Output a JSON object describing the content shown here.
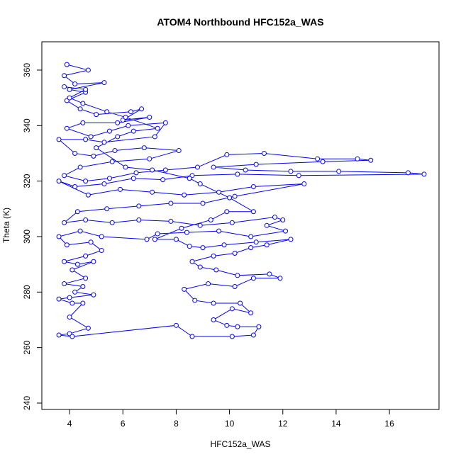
{
  "chart_data": {
    "type": "line",
    "markers": true,
    "title": "ATOM4 Northbound HFC152a_WAS",
    "x_label": "HFC152a_WAS",
    "y_label": "Theta (K)",
    "color": "#0000ff",
    "xlim": [
      2.96,
      17.86
    ],
    "ylim": [
      237.7,
      370.2
    ],
    "xticks": [
      4,
      6,
      8,
      10,
      12,
      14,
      16
    ],
    "yticks": [
      240,
      260,
      280,
      300,
      320,
      340,
      360
    ],
    "x": [
      3.9,
      4.7,
      3.8,
      4.2,
      5.3,
      4.0,
      4.6,
      3.9,
      4.4,
      5.0,
      6.3,
      6.7,
      6.0,
      7.0,
      5.8,
      4.5,
      3.9,
      4.8,
      5.5,
      6.2,
      7.6,
      7.2,
      5.3,
      4.6,
      3.6,
      4.2,
      4.9,
      5.7,
      6.8,
      8.1,
      7.0,
      5.6,
      4.4,
      3.8,
      4.6,
      5.5,
      6.5,
      7.6,
      8.8,
      9.9,
      11.3,
      13.3,
      14.8,
      15.3,
      13.5,
      11.0,
      9.4,
      10.6,
      12.3,
      14.1,
      16.7,
      17.3,
      12.6,
      10.3,
      8.6,
      7.5,
      6.4,
      5.3,
      4.2,
      3.6,
      4.7,
      5.9,
      7.1,
      8.3,
      9.6,
      10.9,
      12.8,
      10.2,
      9.0,
      7.8,
      6.6,
      5.4,
      4.3,
      3.8,
      4.6,
      5.6,
      6.6,
      7.8,
      8.9,
      10.1,
      11.7,
      12.0,
      11.4,
      12.1,
      10.8,
      9.6,
      8.4,
      7.3,
      6.9,
      5.2,
      4.4,
      3.6,
      3.9,
      4.8,
      5.2,
      4.6,
      3.8,
      4.3,
      4.9,
      4.1,
      4.6,
      3.8,
      4.5,
      4.2,
      4.9,
      4.0,
      3.6,
      4.1,
      4.5,
      4.0,
      4.7,
      4.0,
      3.6,
      4.1,
      8.0,
      8.6,
      10.1,
      10.9,
      11.1,
      10.3,
      9.9,
      9.4,
      10.1,
      10.8,
      10.4,
      9.4,
      8.7,
      8.3,
      9.2,
      10.2,
      10.9,
      11.9,
      11.5,
      10.3,
      9.5,
      8.9,
      8.6,
      9.4,
      10.2,
      10.8,
      11.4,
      12.3,
      11.0,
      9.8,
      9.0,
      8.5,
      8.0,
      7.2,
      8.2,
      9.3,
      9.9,
      10.9,
      10.0,
      8.9,
      8.5,
      7.1,
      6.1,
      5.0,
      5.8,
      6.4,
      7.3,
      6.1,
      5.4,
      4.5,
      4.0,
      4.6,
      3.8
    ],
    "values": [
      362,
      360,
      358,
      355,
      355.5,
      353,
      352,
      349,
      346,
      344,
      345,
      346,
      342,
      343,
      341,
      341,
      339,
      336,
      338,
      340,
      341,
      336,
      334,
      335,
      335,
      330,
      329,
      331,
      332,
      331,
      328,
      327,
      325,
      322,
      320,
      321,
      323,
      324,
      325,
      329.5,
      330,
      328,
      328,
      327.5,
      327,
      326,
      325,
      324,
      323.5,
      323.5,
      323,
      322.5,
      322,
      322.5,
      322,
      320.5,
      321,
      319,
      318,
      320,
      315,
      317,
      316,
      315,
      316,
      318,
      319,
      314.5,
      312,
      312,
      311,
      310,
      309,
      305,
      306,
      305,
      306,
      305.5,
      304,
      305,
      307,
      306,
      304,
      302,
      300,
      302,
      301.5,
      301,
      299,
      300,
      302,
      300,
      297,
      298,
      295,
      293,
      291,
      290,
      291,
      288,
      285,
      283,
      282,
      280,
      279,
      278,
      277.5,
      276,
      276,
      271,
      267,
      265,
      264.5,
      264,
      268,
      264,
      264,
      264.5,
      267.5,
      267.5,
      268,
      270,
      274,
      272.5,
      276,
      276,
      277,
      281,
      283,
      282,
      285,
      285,
      286.5,
      286,
      288,
      289,
      291,
      293,
      294,
      296,
      297,
      299,
      298,
      297,
      296,
      296.5,
      299,
      299,
      303,
      306,
      309,
      309,
      314,
      319,
      321,
      324,
      325,
      332,
      336,
      338,
      339,
      343,
      345,
      348,
      350,
      353,
      354
    ]
  }
}
